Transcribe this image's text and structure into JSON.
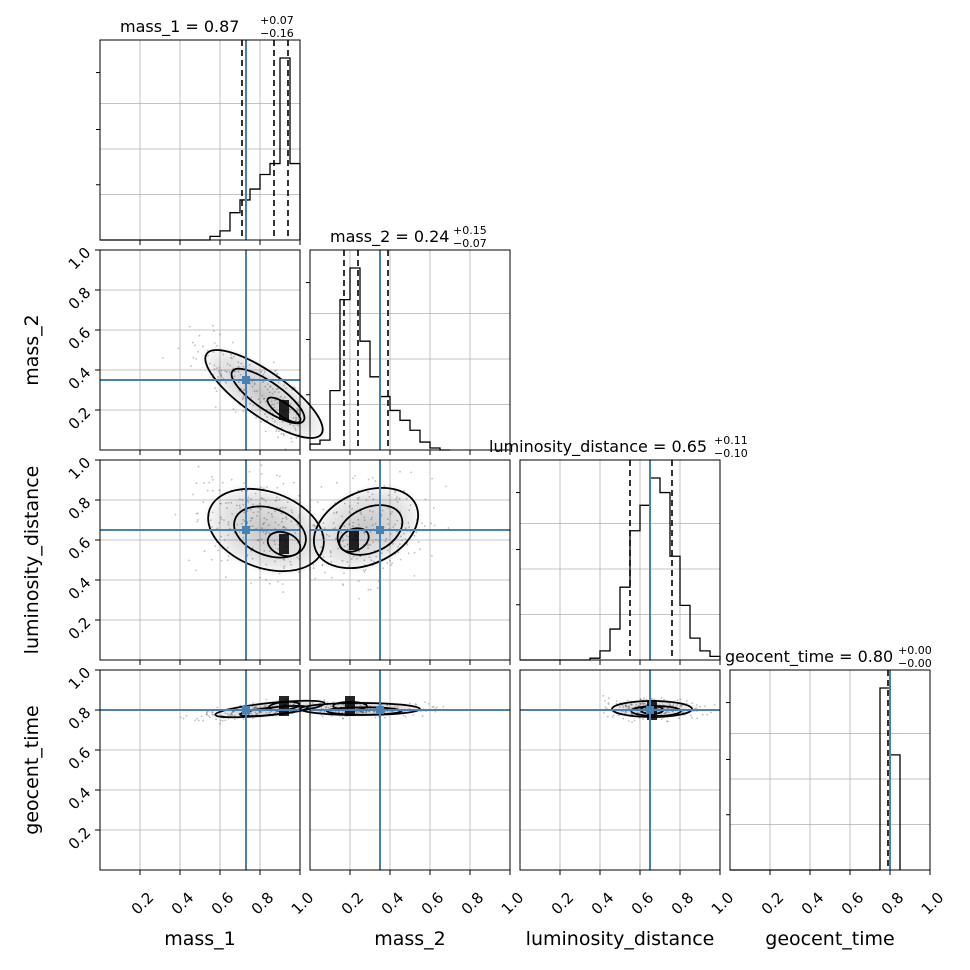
{
  "chart_data": {
    "type": "corner",
    "parameters": [
      "mass_1",
      "mass_2",
      "luminosity_distance",
      "geocent_time"
    ],
    "axis_labels": [
      "mass_1",
      "mass_2",
      "luminosity_distance",
      "geocent_time"
    ],
    "titles": [
      {
        "param": "mass_1",
        "text": "mass_1 = 0.87",
        "plus": "+0.07",
        "minus": "−0.16"
      },
      {
        "param": "mass_2",
        "text": "mass_2 = 0.24",
        "plus": "+0.15",
        "minus": "−0.07"
      },
      {
        "param": "luminosity_distance",
        "text": "luminosity_distance = 0.65",
        "plus": "+0.11",
        "minus": "−0.10"
      },
      {
        "param": "geocent_time",
        "text": "geocent_time = 0.80",
        "plus": "+0.00",
        "minus": "−0.00"
      }
    ],
    "range": [
      0,
      1
    ],
    "tick_values": [
      0.2,
      0.4,
      0.6,
      0.8,
      1.0
    ],
    "tick_labels": [
      "0.2",
      "0.4",
      "0.6",
      "0.8",
      "1.0"
    ],
    "truths": {
      "mass_1": 0.73,
      "mass_2": 0.35,
      "luminosity_distance": 0.65,
      "geocent_time": 0.8
    },
    "quantiles": {
      "mass_1": [
        0.71,
        0.87,
        0.94
      ],
      "mass_2": [
        0.17,
        0.24,
        0.39
      ],
      "luminosity_distance": [
        0.55,
        0.65,
        0.76
      ],
      "geocent_time": [
        0.79,
        0.8,
        0.8
      ]
    },
    "histograms": {
      "mass_1": {
        "bin_edges": [
          0.45,
          0.5,
          0.55,
          0.6,
          0.65,
          0.7,
          0.75,
          0.8,
          0.85,
          0.9,
          0.95,
          1.0
        ],
        "counts": [
          0,
          0,
          0.02,
          0.05,
          0.15,
          0.22,
          0.28,
          0.36,
          0.42,
          1.0,
          0.42
        ]
      },
      "mass_2": {
        "bin_edges": [
          0.0,
          0.05,
          0.1,
          0.15,
          0.2,
          0.25,
          0.3,
          0.35,
          0.4,
          0.45,
          0.5,
          0.55,
          0.6,
          0.65,
          0.7
        ],
        "counts": [
          0.03,
          0.05,
          0.3,
          0.76,
          0.92,
          0.55,
          0.37,
          0.27,
          0.2,
          0.15,
          0.1,
          0.04,
          0.01,
          0
        ]
      },
      "luminosity_distance": {
        "bin_edges": [
          0.3,
          0.35,
          0.4,
          0.45,
          0.5,
          0.55,
          0.6,
          0.65,
          0.7,
          0.75,
          0.8,
          0.85,
          0.9,
          0.95,
          1.0
        ],
        "counts": [
          0,
          0.01,
          0.05,
          0.17,
          0.4,
          0.71,
          0.85,
          1.0,
          0.92,
          0.57,
          0.3,
          0.12,
          0.05,
          0.02
        ]
      },
      "geocent_time": {
        "bin_edges": [
          0.75,
          0.8,
          0.85
        ],
        "counts": [
          0.98,
          0.62
        ]
      }
    },
    "grid": true,
    "contour_levels": 3
  }
}
